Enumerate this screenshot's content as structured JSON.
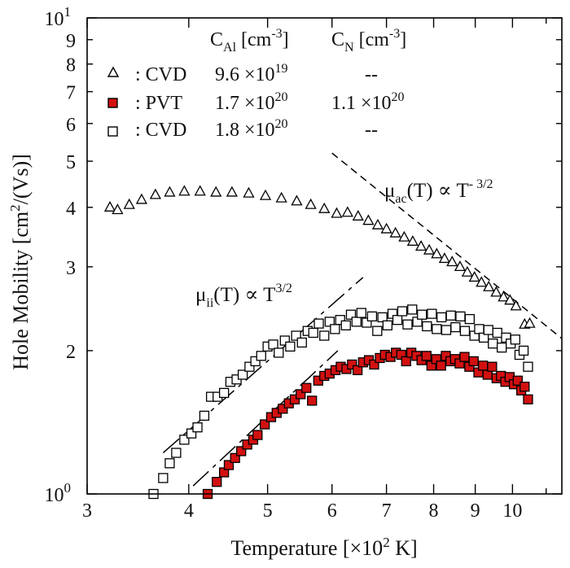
{
  "chart_data": {
    "type": "scatter",
    "x_scale": "log",
    "y_scale": "log",
    "xlim": [
      3,
      11.5
    ],
    "ylim": [
      1,
      10
    ],
    "grid": false,
    "legend_position": "top-left",
    "xlabel": {
      "main": "Temperature  [×10",
      "sup": "2",
      "tail": " K]"
    },
    "ylabel": {
      "main": "Hole Mobility [cm",
      "sup": "2",
      "tail": "/(Vs)]"
    },
    "x_ticks": [
      {
        "value": 3,
        "label": "3"
      },
      {
        "value": 4,
        "label": "4"
      },
      {
        "value": 5,
        "label": "5"
      },
      {
        "value": 6,
        "label": "6"
      },
      {
        "value": 7,
        "label": "7"
      },
      {
        "value": 8,
        "label": "8"
      },
      {
        "value": 9,
        "label": "9"
      },
      {
        "value": 10,
        "label": "10"
      }
    ],
    "x_minor_ticks": [
      11
    ],
    "y_ticks": [
      {
        "value": 1,
        "base": "10",
        "exp": "0"
      },
      {
        "value": 2,
        "base": "2",
        "exp": ""
      },
      {
        "value": 3,
        "base": "3",
        "exp": ""
      },
      {
        "value": 4,
        "base": "4",
        "exp": ""
      },
      {
        "value": 5,
        "base": "5",
        "exp": ""
      },
      {
        "value": 6,
        "base": "6",
        "exp": ""
      },
      {
        "value": 7,
        "base": "7",
        "exp": ""
      },
      {
        "value": 8,
        "base": "8",
        "exp": ""
      },
      {
        "value": 9,
        "base": "9",
        "exp": ""
      },
      {
        "value": 10,
        "base": "10",
        "exp": "1"
      }
    ],
    "legend_header": {
      "c_al": {
        "main": "C",
        "sub": "Al",
        "tail": " [cm",
        "sup": "-3",
        "end": "]"
      },
      "c_n": {
        "main": "C",
        "sub": "N",
        "tail": " [cm",
        "sup": "-3",
        "end": "]"
      }
    },
    "series": [
      {
        "name": "CVD",
        "marker": "triangle-open",
        "color": "#000000",
        "legend_label": ": CVD",
        "c_al": {
          "base": "9.6 ×10",
          "exp": "19"
        },
        "c_n": "--",
        "x": [
          3.2,
          3.27,
          3.38,
          3.5,
          3.64,
          3.79,
          3.95,
          4.13,
          4.32,
          4.52,
          4.74,
          4.97,
          5.2,
          5.43,
          5.65,
          5.87,
          6.08,
          6.27,
          6.46,
          6.65,
          6.83,
          7.0,
          7.18,
          7.36,
          7.54,
          7.72,
          7.9,
          8.07,
          8.25,
          8.43,
          8.62,
          8.8,
          8.98,
          9.16,
          9.35,
          9.55,
          9.75,
          9.93,
          10.1,
          10.35,
          10.5
        ],
        "y": [
          4.0,
          3.95,
          4.05,
          4.15,
          4.25,
          4.3,
          4.32,
          4.32,
          4.3,
          4.3,
          4.28,
          4.23,
          4.18,
          4.12,
          4.05,
          3.97,
          3.88,
          3.9,
          3.83,
          3.75,
          3.67,
          3.6,
          3.53,
          3.46,
          3.39,
          3.31,
          3.25,
          3.19,
          3.12,
          3.07,
          3.0,
          2.92,
          2.85,
          2.78,
          2.72,
          2.65,
          2.59,
          2.55,
          2.48,
          2.27,
          2.28
        ]
      },
      {
        "name": "PVT",
        "marker": "square-filled",
        "color": "#d21010",
        "legend_label": ": PVT",
        "c_al": {
          "base": "1.7 ×10",
          "exp": "20"
        },
        "c_n": {
          "base": "1.1 ×10",
          "exp": "20"
        },
        "x": [
          4.22,
          4.33,
          4.42,
          4.48,
          4.56,
          4.64,
          4.72,
          4.8,
          4.86,
          4.96,
          5.05,
          5.13,
          5.22,
          5.31,
          5.4,
          5.49,
          5.58,
          5.67,
          5.77,
          5.87,
          5.96,
          6.06,
          6.15,
          6.25,
          6.35,
          6.45,
          6.55,
          6.66,
          6.76,
          6.87,
          6.97,
          7.08,
          7.19,
          7.3,
          7.4,
          7.51,
          7.62,
          7.73,
          7.84,
          7.95,
          8.06,
          8.17,
          8.28,
          8.39,
          8.5,
          8.61,
          8.73,
          8.85,
          8.96,
          9.08,
          9.2,
          9.32,
          9.44,
          9.56,
          9.68,
          9.8,
          9.92,
          10.04,
          10.15,
          10.25,
          10.35,
          10.45
        ],
        "y": [
          1.0,
          1.06,
          1.11,
          1.15,
          1.19,
          1.23,
          1.27,
          1.3,
          1.33,
          1.4,
          1.45,
          1.48,
          1.51,
          1.55,
          1.58,
          1.62,
          1.67,
          1.57,
          1.73,
          1.77,
          1.79,
          1.82,
          1.85,
          1.83,
          1.87,
          1.82,
          1.89,
          1.91,
          1.87,
          1.93,
          1.96,
          1.94,
          1.98,
          1.96,
          1.9,
          1.98,
          1.95,
          1.91,
          1.95,
          1.86,
          1.92,
          1.86,
          1.95,
          1.9,
          1.92,
          1.88,
          1.94,
          1.85,
          1.9,
          1.8,
          1.86,
          1.78,
          1.85,
          1.75,
          1.77,
          1.72,
          1.76,
          1.7,
          1.73,
          1.65,
          1.68,
          1.58
        ]
      },
      {
        "name": "CVD",
        "marker": "square-open",
        "color": "#000000",
        "legend_label": ": CVD",
        "c_al": {
          "base": "1.8 ×10",
          "exp": "20"
        },
        "c_n": "--",
        "x": [
          3.62,
          3.72,
          3.79,
          3.86,
          3.95,
          4.03,
          4.1,
          4.18,
          4.26,
          4.34,
          4.42,
          4.5,
          4.58,
          4.66,
          4.75,
          4.83,
          4.91,
          5.0,
          5.08,
          5.16,
          5.25,
          5.33,
          5.42,
          5.51,
          5.6,
          5.69,
          5.78,
          5.87,
          5.96,
          6.05,
          6.14,
          6.24,
          6.33,
          6.43,
          6.52,
          6.62,
          6.72,
          6.82,
          6.92,
          7.02,
          7.12,
          7.22,
          7.32,
          7.43,
          7.53,
          7.64,
          7.74,
          7.85,
          7.96,
          8.07,
          8.18,
          8.29,
          8.4,
          8.51,
          8.63,
          8.74,
          8.86,
          8.98,
          9.1,
          9.22,
          9.34,
          9.46,
          9.58,
          9.7,
          9.82,
          9.95,
          10.08,
          10.2,
          10.32,
          10.45
        ],
        "y": [
          1.0,
          1.08,
          1.16,
          1.22,
          1.3,
          1.34,
          1.38,
          1.46,
          1.6,
          1.6,
          1.63,
          1.72,
          1.74,
          1.78,
          1.85,
          1.9,
          1.95,
          2.04,
          2.06,
          1.98,
          2.1,
          2.04,
          2.15,
          2.08,
          2.2,
          2.18,
          2.28,
          2.15,
          2.3,
          2.22,
          2.32,
          2.26,
          2.38,
          2.3,
          2.4,
          2.29,
          2.36,
          2.2,
          2.35,
          2.26,
          2.39,
          2.32,
          2.42,
          2.27,
          2.44,
          2.3,
          2.38,
          2.25,
          2.39,
          2.22,
          2.35,
          2.21,
          2.37,
          2.24,
          2.36,
          2.2,
          2.33,
          2.15,
          2.22,
          2.13,
          2.21,
          2.07,
          2.18,
          2.03,
          2.13,
          2.07,
          2.11,
          1.96,
          2.0,
          1.85
        ]
      }
    ],
    "guide_lines": [
      {
        "id": "mu-ac",
        "style": "dashed",
        "x": [
          6.0,
          12.0
        ],
        "y": [
          5.2,
          2.0
        ]
      },
      {
        "id": "mu-ii-upper",
        "style": "dashdot",
        "x": [
          3.72,
          6.55
        ],
        "y": [
          1.22,
          2.85
        ]
      },
      {
        "id": "mu-ii-lower",
        "style": "dashdot",
        "x": [
          4.05,
          6.1
        ],
        "y": [
          1.04,
          2.0
        ]
      }
    ],
    "annotations": [
      {
        "id": "mu-ac",
        "mu": "μ",
        "sub": "ac",
        "expr": "(T) ∝ T",
        "sup": "- 3/2"
      },
      {
        "id": "mu-ii",
        "mu": "μ",
        "sub": "ii",
        "expr": "(T) ∝ T",
        "sup": "3/2"
      }
    ]
  }
}
